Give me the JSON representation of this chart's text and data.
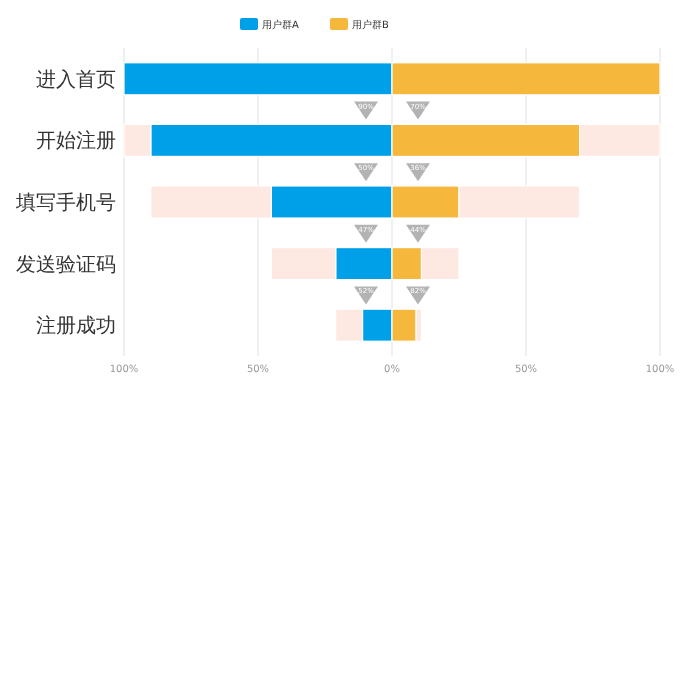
{
  "chart_data": {
    "type": "bar",
    "orientation": "horizontal",
    "stacked": true,
    "categories": [
      "进入首页",
      "开始注册",
      "填写手机号",
      "发送验证码",
      "注册成功"
    ],
    "series": [
      {
        "name": "用户群A",
        "color": "#00a0e9",
        "values": [
          -100,
          -90,
          -45,
          -21,
          -11
        ]
      },
      {
        "name": "用户群B",
        "color": "#f5b83d",
        "values": [
          100,
          70,
          25,
          11,
          9
        ]
      },
      {
        "color": "#fde8e2",
        "values": [
          null,
          -10,
          -45,
          -24,
          -10
        ]
      },
      {
        "color": "#fde8e2",
        "values": [
          null,
          30,
          45,
          14,
          2
        ]
      }
    ],
    "xlim": [
      -100,
      100
    ],
    "xticks": [
      {
        "value": -100,
        "label": "100%"
      },
      {
        "value": -50,
        "label": "50%"
      },
      {
        "value": 0,
        "label": "0%"
      },
      {
        "value": 50,
        "label": "50%"
      },
      {
        "value": 100,
        "label": "100%"
      }
    ],
    "grid": "x",
    "legend": "top",
    "annotations": [
      "90%",
      "70%",
      "50%",
      "36%",
      "47%",
      "44%",
      "52%",
      "82%"
    ]
  }
}
